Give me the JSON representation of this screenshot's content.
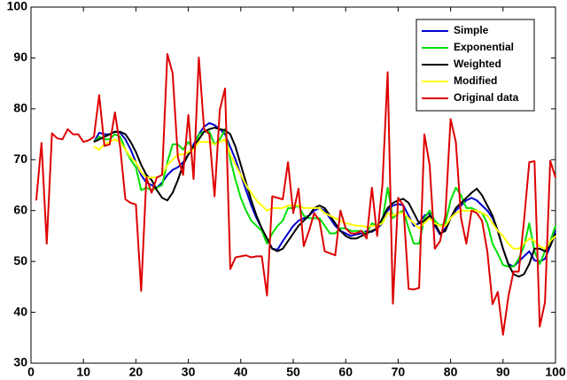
{
  "chart_data": {
    "type": "line",
    "x": [
      1,
      2,
      3,
      4,
      5,
      6,
      7,
      8,
      9,
      10,
      11,
      12,
      13,
      14,
      15,
      16,
      17,
      18,
      19,
      20,
      21,
      22,
      23,
      24,
      25,
      26,
      27,
      28,
      29,
      30,
      31,
      32,
      33,
      34,
      35,
      36,
      37,
      38,
      39,
      40,
      41,
      42,
      43,
      44,
      45,
      46,
      47,
      48,
      49,
      50,
      51,
      52,
      53,
      54,
      55,
      56,
      57,
      58,
      59,
      60,
      61,
      62,
      63,
      64,
      65,
      66,
      67,
      68,
      69,
      70,
      71,
      72,
      73,
      74,
      75,
      76,
      77,
      78,
      79,
      80,
      81,
      82,
      83,
      84,
      85,
      86,
      87,
      88,
      89,
      90,
      91,
      92,
      93,
      94,
      95,
      96,
      97,
      98,
      99,
      100
    ],
    "xlim": [
      0,
      100
    ],
    "xticks": [
      0,
      10,
      20,
      30,
      40,
      50,
      60,
      70,
      80,
      90,
      100
    ],
    "ylim": [
      30,
      100
    ],
    "yticks": [
      30,
      40,
      50,
      60,
      70,
      80,
      90,
      100
    ],
    "grid": false,
    "legend": "upper right",
    "series": [
      {
        "name": "Simple",
        "color": "#0000cc",
        "values": [
          null,
          null,
          null,
          null,
          null,
          null,
          null,
          null,
          null,
          null,
          null,
          73.5,
          75.3,
          75,
          75,
          75.5,
          75.3,
          74,
          72,
          69.5,
          67,
          65.5,
          65,
          64.5,
          65.5,
          67,
          68,
          68.5,
          69.5,
          71,
          73,
          75,
          76.5,
          77.2,
          76.8,
          76,
          75,
          72.5,
          70,
          67,
          64,
          61,
          58.5,
          56.5,
          54.5,
          52.5,
          52.3,
          54,
          55.5,
          57,
          58,
          58.5,
          59,
          60,
          60.5,
          60,
          58.5,
          57,
          56,
          55.5,
          55,
          55.3,
          55.5,
          56,
          55.8,
          56.5,
          57.5,
          60,
          61,
          61.3,
          61,
          59,
          57,
          57.5,
          59,
          59.5,
          57,
          55.3,
          56.5,
          58.5,
          60,
          61,
          62,
          62.5,
          62,
          61,
          60,
          58.5,
          56,
          52.5,
          49.5,
          49,
          50,
          51,
          52,
          50.2,
          50,
          50.5,
          53,
          56
        ]
      },
      {
        "name": "Exponential",
        "color": "#00e000",
        "values": [
          null,
          null,
          null,
          null,
          null,
          null,
          null,
          null,
          null,
          null,
          null,
          73.5,
          74.5,
          74,
          74,
          75,
          74.5,
          72,
          70,
          68.5,
          64,
          64.5,
          64,
          64.5,
          65,
          69.5,
          73,
          73,
          72,
          73.5,
          72,
          75,
          75.5,
          75.5,
          73,
          74,
          76,
          70,
          66,
          62.5,
          60,
          58,
          57,
          56,
          53.5,
          55.5,
          57,
          58,
          60.5,
          60.5,
          61,
          59,
          58.5,
          58.5,
          58.5,
          57,
          55.5,
          55.5,
          56.5,
          56.5,
          56,
          56,
          56,
          55.5,
          57.5,
          57,
          58,
          64.5,
          58.5,
          59.5,
          60,
          56.5,
          53.5,
          53.5,
          58.5,
          60,
          58,
          57,
          57.5,
          62,
          64.5,
          63,
          60.5,
          60.5,
          60,
          59.5,
          57.5,
          53.5,
          51.5,
          49.3,
          49,
          49,
          50.5,
          53,
          57.5,
          52,
          49.5,
          52,
          54,
          57
        ]
      },
      {
        "name": "Weighted",
        "color": "#000000",
        "values": [
          null,
          null,
          null,
          null,
          null,
          null,
          null,
          null,
          null,
          null,
          null,
          73.5,
          74,
          74.5,
          75,
          75.5,
          75.5,
          75,
          73.5,
          71.5,
          69,
          67,
          66,
          64,
          62.5,
          62,
          63.5,
          66,
          69,
          71,
          72.5,
          74,
          75.5,
          76,
          76.3,
          76,
          75.8,
          75,
          72.5,
          69,
          65.5,
          62,
          59,
          56.5,
          54.5,
          52.5,
          52,
          52.5,
          54,
          55.5,
          57,
          58,
          59,
          60.5,
          61,
          60.5,
          59,
          57.5,
          56,
          55,
          54.5,
          54.5,
          55,
          55.5,
          56,
          56.5,
          58.5,
          60.5,
          61.5,
          62,
          62.3,
          61.5,
          59.5,
          57.5,
          58,
          59,
          57.5,
          55.5,
          56,
          58.5,
          60.5,
          61.5,
          62.5,
          63.5,
          64.3,
          63,
          61,
          59,
          56,
          52.5,
          49.5,
          47.5,
          47,
          47.5,
          49.5,
          52.5,
          52.5,
          52,
          53,
          55.5
        ]
      },
      {
        "name": "Modified",
        "color": "#ffff00",
        "values": [
          null,
          null,
          null,
          null,
          null,
          null,
          null,
          null,
          null,
          null,
          null,
          72.5,
          72,
          73,
          73.5,
          74,
          73.5,
          72,
          70.5,
          69.5,
          67.5,
          66.5,
          66.5,
          66.5,
          67,
          69,
          70,
          71,
          71,
          71.5,
          72,
          73.5,
          73.5,
          73.5,
          73,
          73.5,
          74,
          71,
          69,
          67,
          65,
          63.5,
          62,
          61,
          60,
          60.5,
          60.5,
          60.5,
          61,
          61,
          61,
          60.5,
          60.5,
          60.5,
          60.5,
          59.5,
          59,
          58.5,
          58,
          57.5,
          57.3,
          57,
          57,
          56.8,
          57,
          57,
          57.5,
          59.5,
          59,
          59.5,
          59.5,
          58.5,
          57.5,
          56.5,
          57.5,
          58.5,
          57.5,
          57,
          57,
          58.5,
          59.5,
          60,
          60,
          60,
          60,
          59.5,
          59,
          57.5,
          56,
          55,
          53.5,
          52.5,
          52.5,
          53.5,
          54.5,
          54,
          53,
          52.5,
          54,
          55
        ]
      },
      {
        "name": "Original data",
        "color": "#dd0000",
        "values": [
          62,
          73.3,
          53.5,
          75.2,
          74.2,
          74,
          76,
          75,
          75,
          73.5,
          73.8,
          74.5,
          82.7,
          72.7,
          73,
          79.3,
          72.5,
          62.2,
          61.5,
          61.2,
          44.2,
          66.5,
          63.5,
          66.5,
          67,
          90.8,
          87,
          70.5,
          67,
          78.8,
          66.2,
          90.1,
          76,
          75,
          62.8,
          79.8,
          84,
          48.5,
          50.8,
          51,
          51.2,
          50.8,
          51,
          51,
          43.3,
          62.8,
          62.5,
          62.2,
          69.5,
          59.5,
          64.3,
          53,
          56,
          59.5,
          58,
          52,
          51.6,
          51.2,
          60,
          56.5,
          55.5,
          55.5,
          56,
          54.5,
          64.5,
          55,
          65,
          87.2,
          41.7,
          62.5,
          61,
          44.6,
          44.5,
          44.8,
          75,
          69,
          52.5,
          54,
          59,
          78,
          73.5,
          58.5,
          53.5,
          60,
          59.5,
          58,
          52,
          41.6,
          44,
          35.6,
          43,
          48,
          48,
          58,
          69.5,
          69.7,
          37.2,
          42,
          69.8,
          66.5
        ]
      }
    ]
  }
}
